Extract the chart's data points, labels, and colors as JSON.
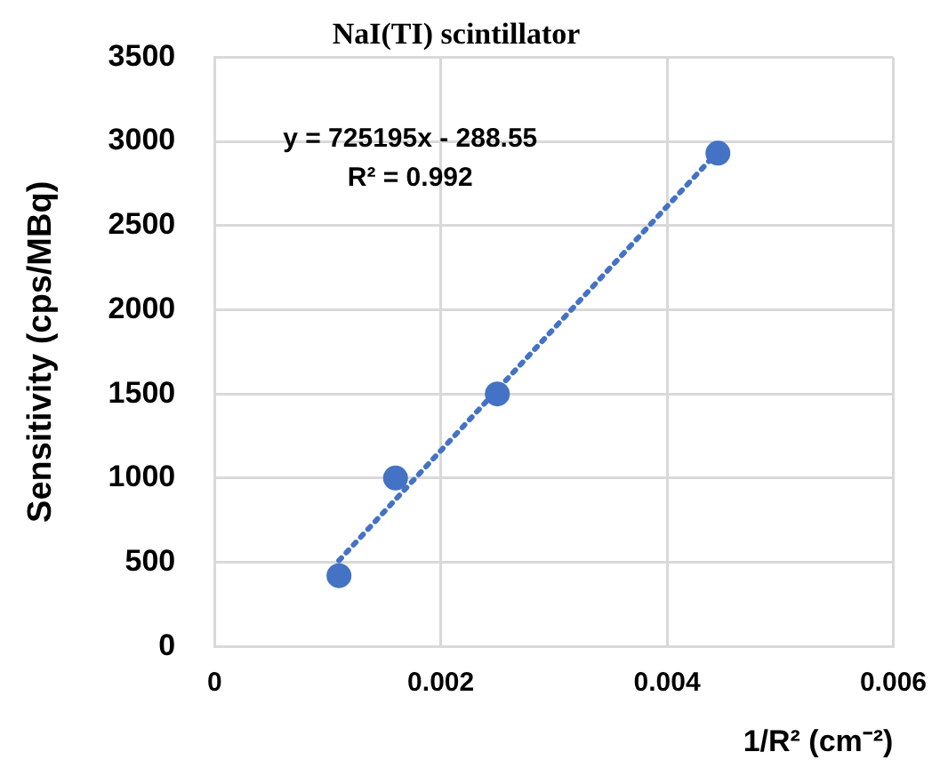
{
  "chart_data": {
    "type": "scatter",
    "title": "NaI(TI) scintillator",
    "xlabel": "1/R² (cm⁻²)",
    "ylabel": "Sensitivity (cps/MBq)",
    "annotations": [
      "y = 725195x - 288.55",
      "R² = 0.992"
    ],
    "series": [
      {
        "type": "scatter",
        "color": "#4472c4",
        "x": [
          0.0011,
          0.0016,
          0.0025,
          0.00445
        ],
        "values": [
          420,
          1000,
          1500,
          2930
        ],
        "marker": "circle"
      },
      {
        "type": "line",
        "color": "#4472c4",
        "x": [
          0.0011,
          0.00445
        ],
        "values": [
          510,
          2940
        ],
        "marker": "none",
        "line_style": "dotted"
      }
    ],
    "xlim": [
      0,
      0.006
    ],
    "xticks": [
      0,
      0.002,
      0.004,
      0.006
    ],
    "ylim": [
      0,
      3500
    ],
    "yticks": [
      0,
      500,
      1000,
      1500,
      2000,
      2500,
      3000,
      3500
    ],
    "grid": true,
    "legend": false
  }
}
